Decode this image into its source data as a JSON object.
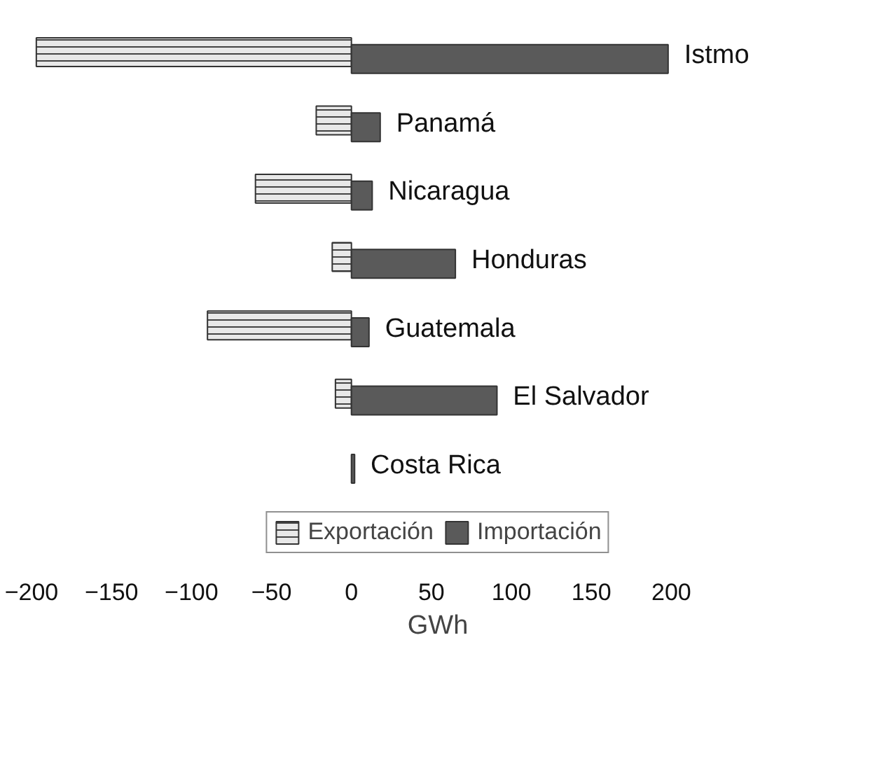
{
  "chart_data": {
    "type": "bar",
    "orientation": "horizontal",
    "xlabel": "GWh",
    "categories": [
      "Istmo",
      "Panamá",
      "Nicaragua",
      "Honduras",
      "Guatemala",
      "El Salvador",
      "Costa Rica"
    ],
    "series": [
      {
        "name": "Exportación",
        "color": "#e8e8e8",
        "values": [
          -197,
          -22,
          -60,
          -12,
          -90,
          -10,
          null
        ]
      },
      {
        "name": "Importación",
        "color": "#5a5a5a",
        "values": [
          198,
          18,
          13,
          65,
          11,
          91,
          2
        ]
      }
    ],
    "xlim": [
      -200,
      200
    ],
    "xticks": [
      -200,
      -150,
      -100,
      -50,
      0,
      50,
      100,
      150,
      200
    ],
    "grid": false,
    "legend": "bottom"
  }
}
